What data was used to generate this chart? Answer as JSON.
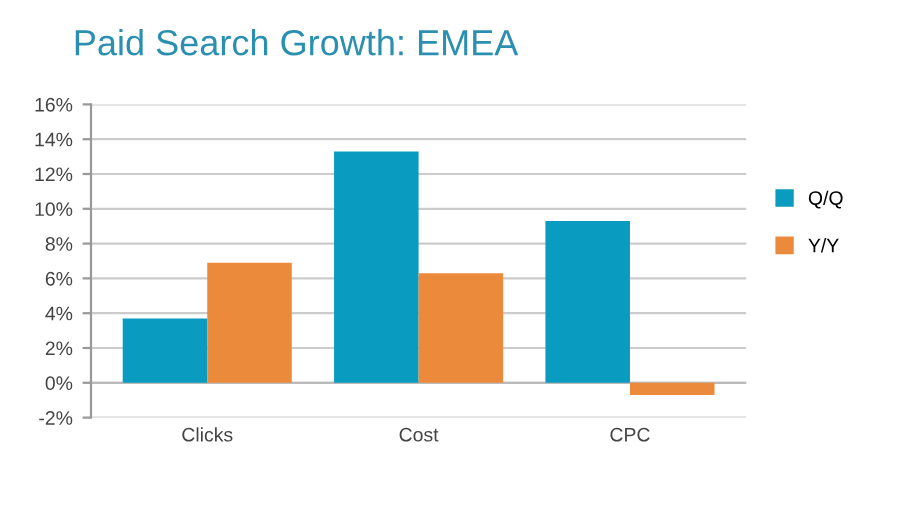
{
  "chart_data": {
    "type": "bar",
    "title": "Paid Search Growth: EMEA",
    "categories": [
      "Clicks",
      "Cost",
      "CPC"
    ],
    "series": [
      {
        "name": "Q/Q",
        "color": "#0a9cc0",
        "values": [
          3.7,
          13.3,
          9.3
        ]
      },
      {
        "name": "Y/Y",
        "color": "#ec8a3c",
        "values": [
          6.9,
          6.3,
          -0.7
        ]
      }
    ],
    "ylim": [
      -2,
      16
    ],
    "yticks": [
      {
        "value": -2,
        "label": "-2%"
      },
      {
        "value": 0,
        "label": "0%"
      },
      {
        "value": 2,
        "label": "2%"
      },
      {
        "value": 4,
        "label": "4%"
      },
      {
        "value": 6,
        "label": "6%"
      },
      {
        "value": 8,
        "label": "8%"
      },
      {
        "value": 10,
        "label": "10%"
      },
      {
        "value": 12,
        "label": "12%"
      },
      {
        "value": 14,
        "label": "14%"
      },
      {
        "value": 16,
        "label": "16%"
      }
    ],
    "grid": "y",
    "legend": "right"
  }
}
